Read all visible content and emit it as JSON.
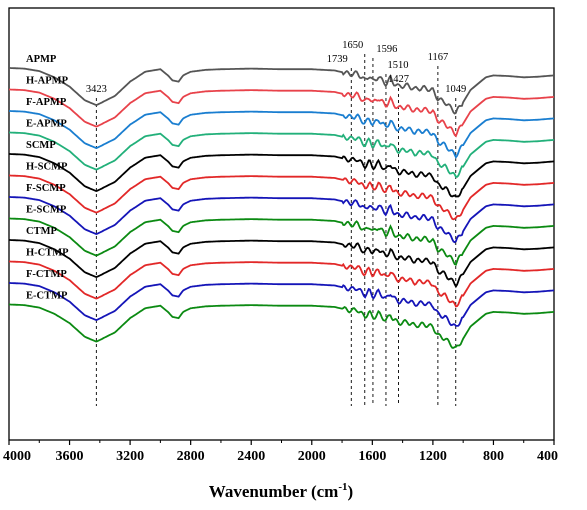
{
  "chart_data": {
    "type": "line",
    "title": "",
    "xlabel": "Wavenumber (cm",
    "xlabel_sup": "-1",
    "xlabel_close": ")",
    "ylabel": "",
    "xlim": [
      4000,
      400
    ],
    "x_reversed": true,
    "x_ticks": [
      4000,
      3600,
      3200,
      2800,
      2400,
      2000,
      1600,
      1200,
      800,
      400
    ],
    "x_tick_labels": [
      "4000",
      "3600",
      "3200",
      "2800",
      "2400",
      "2000",
      "1600",
      "1200",
      "800",
      "400"
    ],
    "y_ticks_shown": false,
    "grid": false,
    "legend": "none",
    "annotations": [
      {
        "label": "3423",
        "x": 3423
      },
      {
        "label": "1739",
        "x": 1739
      },
      {
        "label": "1650",
        "x": 1650
      },
      {
        "label": "1596",
        "x": 1596
      },
      {
        "label": "1510",
        "x": 1510
      },
      {
        "label": "1427",
        "x": 1427
      },
      {
        "label": "1167",
        "x": 1167
      },
      {
        "label": "1049",
        "x": 1049
      }
    ],
    "series": [
      {
        "name": "APMP",
        "color": "#555555",
        "offset": 0
      },
      {
        "name": "H-APMP",
        "color": "#e8424a",
        "offset": 1
      },
      {
        "name": "F-APMP",
        "color": "#1a7ed0",
        "offset": 2
      },
      {
        "name": "E-APMP",
        "color": "#22b07a",
        "offset": 3
      },
      {
        "name": "SCMP",
        "color": "#000000",
        "offset": 4
      },
      {
        "name": "H-SCMP",
        "color": "#e22828",
        "offset": 5
      },
      {
        "name": "F-SCMP",
        "color": "#1515b8",
        "offset": 6
      },
      {
        "name": "E-SCMP",
        "color": "#0b8a12",
        "offset": 7
      },
      {
        "name": "CTMP",
        "color": "#000000",
        "offset": 8
      },
      {
        "name": "H-CTMP",
        "color": "#e22828",
        "offset": 9
      },
      {
        "name": "F-CTMP",
        "color": "#1515b8",
        "offset": 10
      },
      {
        "name": "E-CTMP",
        "color": "#0b8a12",
        "offset": 11
      }
    ],
    "spectrum_shape": [
      [
        4000,
        0.0
      ],
      [
        3900,
        -0.01
      ],
      [
        3800,
        -0.05
      ],
      [
        3700,
        -0.15
      ],
      [
        3600,
        -0.3
      ],
      [
        3500,
        -0.52
      ],
      [
        3423,
        -0.6
      ],
      [
        3300,
        -0.45
      ],
      [
        3200,
        -0.22
      ],
      [
        3100,
        -0.06
      ],
      [
        3000,
        -0.02
      ],
      [
        2950,
        -0.12
      ],
      [
        2920,
        -0.2
      ],
      [
        2880,
        -0.22
      ],
      [
        2850,
        -0.12
      ],
      [
        2800,
        -0.06
      ],
      [
        2700,
        -0.03
      ],
      [
        2600,
        -0.02
      ],
      [
        2400,
        -0.01
      ],
      [
        2200,
        -0.02
      ],
      [
        2000,
        -0.02
      ],
      [
        1850,
        -0.04
      ],
      [
        1739,
        -0.1
      ],
      [
        1700,
        -0.08
      ],
      [
        1650,
        -0.2
      ],
      [
        1620,
        -0.12
      ],
      [
        1596,
        -0.22
      ],
      [
        1560,
        -0.14
      ],
      [
        1510,
        -0.26
      ],
      [
        1480,
        -0.16
      ],
      [
        1460,
        -0.24
      ],
      [
        1427,
        -0.3
      ],
      [
        1370,
        -0.28
      ],
      [
        1320,
        -0.34
      ],
      [
        1260,
        -0.32
      ],
      [
        1200,
        -0.36
      ],
      [
        1167,
        -0.5
      ],
      [
        1120,
        -0.55
      ],
      [
        1049,
        -0.72
      ],
      [
        1000,
        -0.55
      ],
      [
        950,
        -0.35
      ],
      [
        900,
        -0.25
      ],
      [
        850,
        -0.15
      ],
      [
        800,
        -0.12
      ],
      [
        700,
        -0.13
      ],
      [
        600,
        -0.15
      ],
      [
        500,
        -0.14
      ],
      [
        400,
        -0.12
      ]
    ]
  }
}
